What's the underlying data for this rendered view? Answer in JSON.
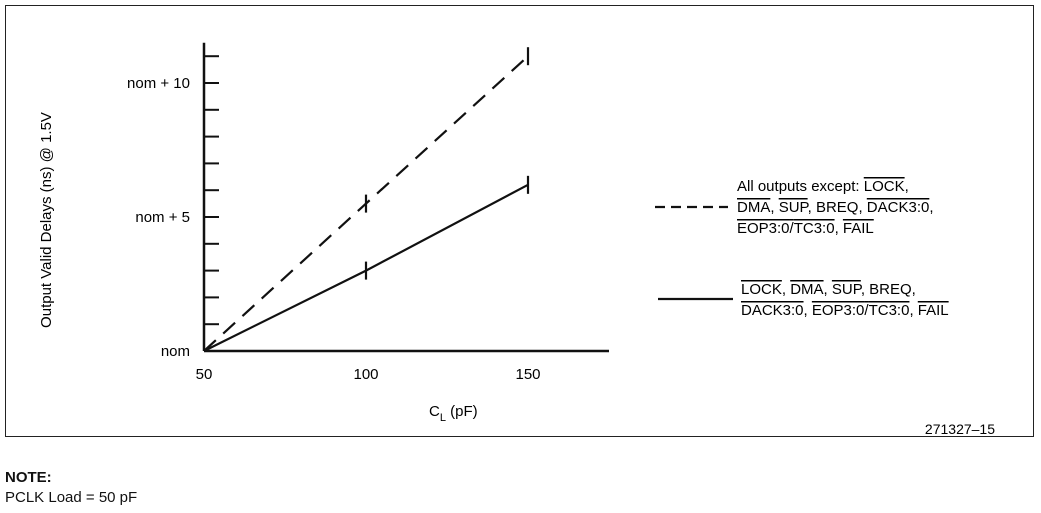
{
  "chart_data": {
    "type": "line",
    "xlabel_main": "C",
    "xlabel_sub": "L",
    "xlabel_unit": " (pF)",
    "ylabel": "Output Valid Delays (ns) @ 1.5V",
    "x_ticks": [
      "50",
      "100",
      "150"
    ],
    "y_ticks": [
      "nom",
      "nom + 5",
      "nom + 10"
    ],
    "x_range": [
      50,
      175
    ],
    "y_range": [
      0,
      11.5
    ],
    "series": [
      {
        "style": "dashed",
        "x": [
          50,
          100,
          150
        ],
        "y": [
          0,
          5.5,
          11
        ],
        "legend_lines": [
          [
            {
              "t": "All outputs except: "
            },
            {
              "t": "LOCK",
              "o": true
            },
            {
              "t": ","
            }
          ],
          [
            {
              "t": "DMA",
              "o": true
            },
            {
              "t": ", "
            },
            {
              "t": "SUP",
              "o": true
            },
            {
              "t": ", BREQ, "
            },
            {
              "t": "DACK3:0",
              "o": true
            },
            {
              "t": ","
            }
          ],
          [
            {
              "t": "EOP3:0",
              "o": true
            },
            {
              "t": "/",
              "o": true
            },
            {
              "t": "TC3:0",
              "o": true
            },
            {
              "t": ", "
            },
            {
              "t": "FAIL",
              "o": true
            }
          ]
        ]
      },
      {
        "style": "solid",
        "x": [
          50,
          100,
          150
        ],
        "y": [
          0,
          3,
          6.2
        ],
        "legend_lines": [
          [
            {
              "t": "LOCK",
              "o": true
            },
            {
              "t": ", "
            },
            {
              "t": "DMA",
              "o": true
            },
            {
              "t": ", "
            },
            {
              "t": "SUP",
              "o": true
            },
            {
              "t": ", BREQ,"
            }
          ],
          [
            {
              "t": "DACK3:0",
              "o": true
            },
            {
              "t": ", "
            },
            {
              "t": "EOP3:0",
              "o": true
            },
            {
              "t": "/",
              "o": true
            },
            {
              "t": "TC3:0",
              "o": true
            },
            {
              "t": ", "
            },
            {
              "t": "FAIL",
              "o": true
            }
          ]
        ]
      }
    ]
  },
  "figure_id": "271327–15",
  "note": {
    "title": "NOTE:",
    "text": "PCLK Load = 50 pF"
  }
}
